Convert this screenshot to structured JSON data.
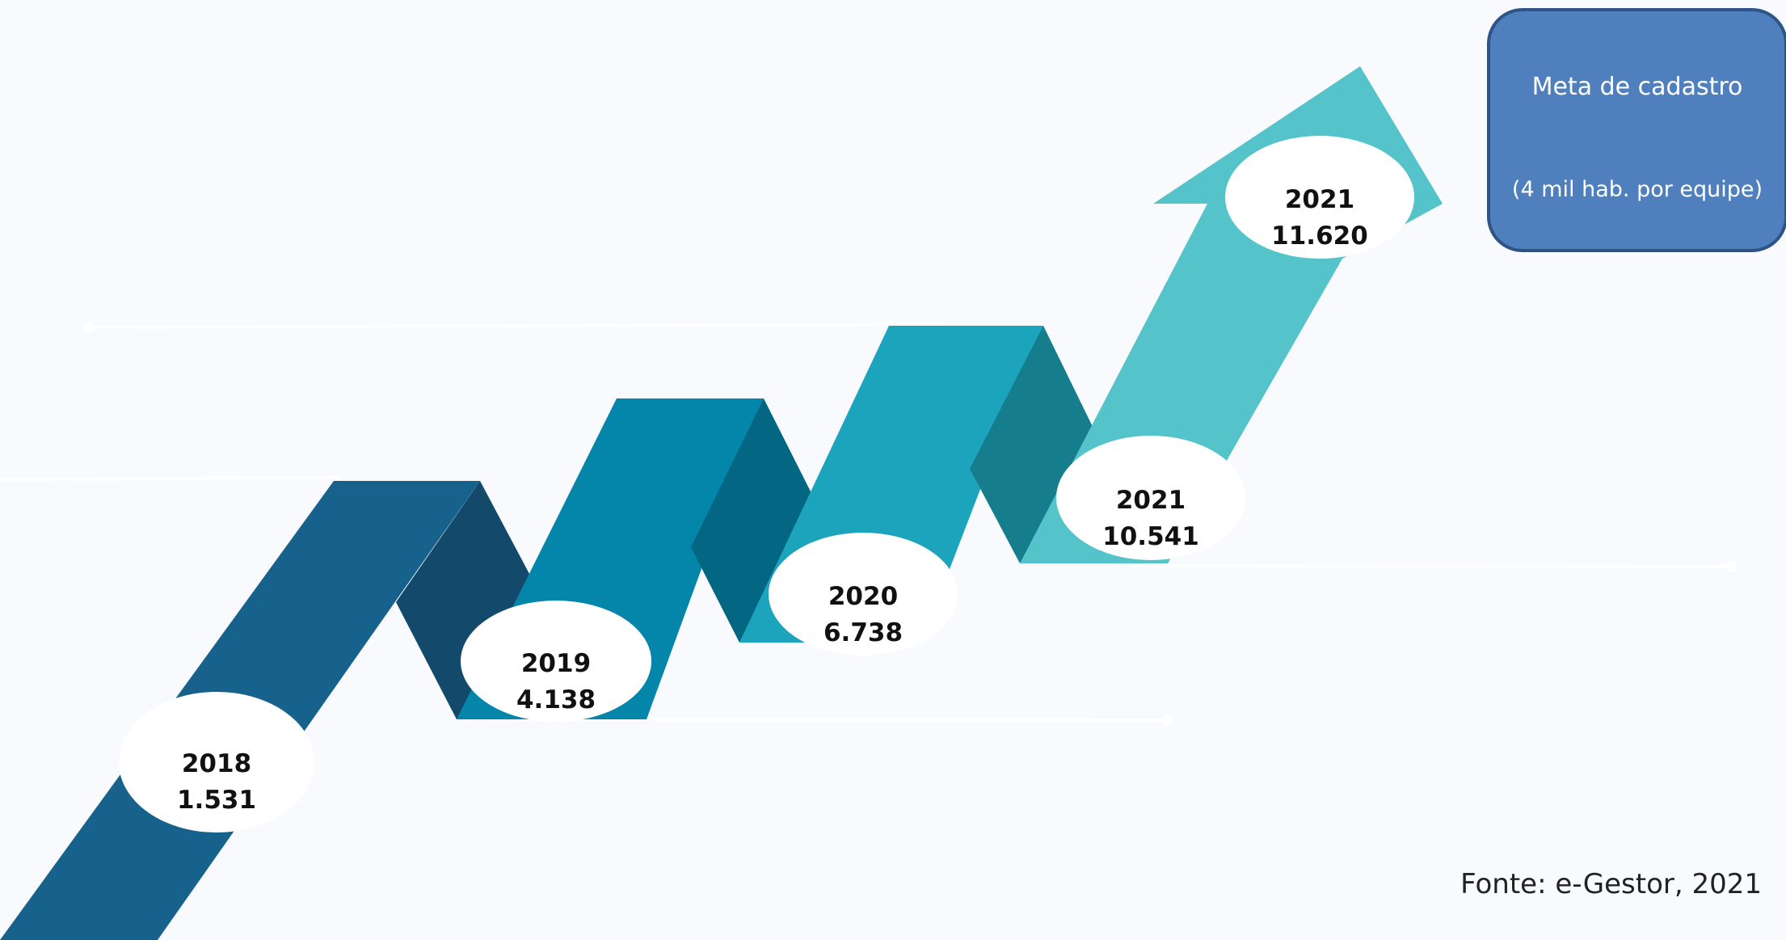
{
  "milestones": [
    {
      "year": "2018",
      "value": "1.531"
    },
    {
      "year": "2019",
      "value": "4.138"
    },
    {
      "year": "2020",
      "value": "6.738"
    },
    {
      "year": "2021",
      "value": "10.541"
    },
    {
      "year": "2021",
      "value": "11.620"
    }
  ],
  "goal_box": {
    "title": "Meta de cadastro",
    "subtitle": "(4 mil hab. por equipe)"
  },
  "source": "Fonte: e-Gestor, 2021",
  "colors": {
    "background": "#f8fafd",
    "segment_1": "#17628c",
    "fold_1": "#13496b",
    "segment_2": "#0486ab",
    "fold_2": "#036682",
    "segment_3": "#1da4bd",
    "fold_3": "#157d8c",
    "segment_4": "#54c3ca",
    "goal_box_fill": "#4f80bd",
    "goal_box_border": "#2e5386"
  }
}
